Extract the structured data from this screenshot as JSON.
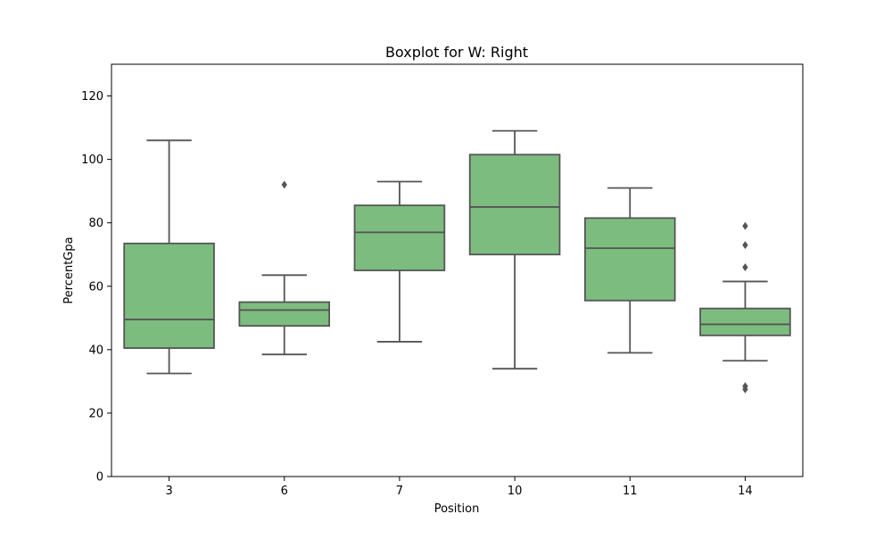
{
  "chart_data": {
    "type": "box",
    "title": "Boxplot for W: Right",
    "xlabel": "Position",
    "ylabel": "PercentGpa",
    "ylim": [
      0,
      130
    ],
    "yticks": [
      0,
      20,
      40,
      60,
      80,
      100,
      120
    ],
    "categories": [
      "3",
      "6",
      "7",
      "10",
      "11",
      "14"
    ],
    "boxes": [
      {
        "category": "3",
        "whisker_low": 32.5,
        "q1": 40.5,
        "median": 49.5,
        "q3": 73.5,
        "whisker_high": 106.0,
        "outliers": []
      },
      {
        "category": "6",
        "whisker_low": 38.5,
        "q1": 47.5,
        "median": 52.5,
        "q3": 55.0,
        "whisker_high": 63.5,
        "outliers": [
          92.0
        ]
      },
      {
        "category": "7",
        "whisker_low": 42.5,
        "q1": 65.0,
        "median": 77.0,
        "q3": 85.5,
        "whisker_high": 93.0,
        "outliers": []
      },
      {
        "category": "10",
        "whisker_low": 34.0,
        "q1": 70.0,
        "median": 85.0,
        "q3": 101.5,
        "whisker_high": 109.0,
        "outliers": []
      },
      {
        "category": "11",
        "whisker_low": 39.0,
        "q1": 55.5,
        "median": 72.0,
        "q3": 81.5,
        "whisker_high": 91.0,
        "outliers": []
      },
      {
        "category": "14",
        "whisker_low": 36.5,
        "q1": 44.5,
        "median": 48.0,
        "q3": 53.0,
        "whisker_high": 61.5,
        "outliers": [
          79.0,
          73.0,
          66.0,
          28.5,
          27.5
        ]
      }
    ],
    "grid": false,
    "legend": "none",
    "colors": {
      "box_fill": "#7dbc7f",
      "line": "#555555",
      "outlier": "#555555",
      "axes": "#000000"
    }
  }
}
